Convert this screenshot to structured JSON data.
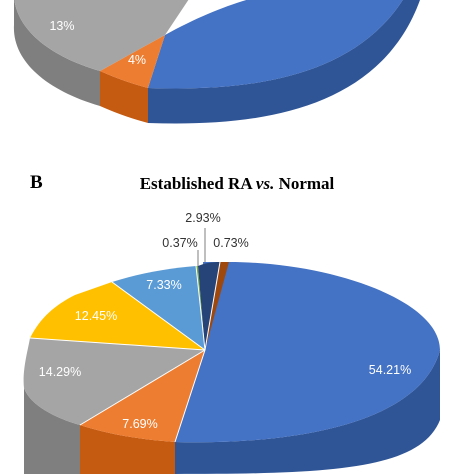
{
  "chart_data": [
    {
      "type": "pie",
      "title": "",
      "panel": "",
      "three_d": true,
      "cropped": "top half not visible",
      "slices": [
        {
          "label": "13%",
          "value": 13,
          "color": "#a5a5a5"
        },
        {
          "label": "4%",
          "value": 4,
          "color": "#ed7d31"
        }
      ],
      "colors": {
        "main": "#4472c4",
        "side": "#2f5597",
        "gray": "#a5a5a5",
        "orange": "#ed7d31"
      }
    },
    {
      "type": "pie",
      "three_d": true,
      "panel": "B",
      "title": "Established RA",
      "title_italic": "vs.",
      "title_tail": "Normal",
      "slices": [
        {
          "label": "54.21%",
          "value": 54.21,
          "color": "#4472c4"
        },
        {
          "label": "7.69%",
          "value": 7.69,
          "color": "#ed7d31"
        },
        {
          "label": "14.29%",
          "value": 14.29,
          "color": "#a5a5a5"
        },
        {
          "label": "12.45%",
          "value": 12.45,
          "color": "#ffc000"
        },
        {
          "label": "7.33%",
          "value": 7.33,
          "color": "#5b9bd5"
        },
        {
          "label": "0.37%",
          "value": 0.37,
          "color": "#70ad47"
        },
        {
          "label": "2.93%",
          "value": 2.93,
          "color": "#264478"
        },
        {
          "label": "0.73%",
          "value": 0.73,
          "color": "#9e480e"
        }
      ]
    }
  ]
}
